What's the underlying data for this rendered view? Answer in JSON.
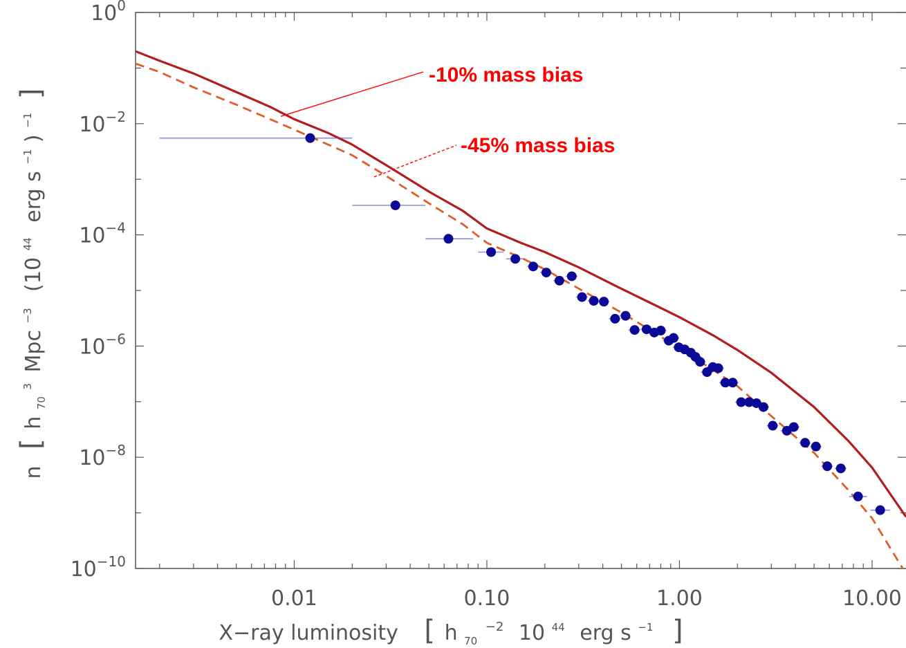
{
  "chart_data": {
    "type": "scatter",
    "title": "",
    "xlabel": "X−ray luminosity",
    "xlabel_units": {
      "open": "[",
      "h": "h",
      "h_sub": "70",
      "h_sup": "−2",
      "base": "10",
      "base_sup": "44",
      "unit": "erg s",
      "unit_sup": "−1",
      "close": "]"
    },
    "ylabel": {
      "n": "n",
      "h": "h",
      "h_sub": "70",
      "h_sup": "3",
      "mpc": "Mpc",
      "mpc_sup": "−3",
      "base": "(10",
      "base_sup": "44",
      "unit": "erg s",
      "unit_sup": "−1",
      "close": ")",
      "close_sup": "−1"
    },
    "xscale": "log",
    "yscale": "log",
    "xlim": [
      0.0015,
      15
    ],
    "ylim": [
      1e-10,
      1
    ],
    "grid": false,
    "x_ticks": [
      {
        "value": 0.01,
        "label": "0.01"
      },
      {
        "value": 0.1,
        "label": "0.10"
      },
      {
        "value": 1,
        "label": "1.00"
      },
      {
        "value": 10,
        "label": "10.00"
      }
    ],
    "y_ticks": [
      {
        "value": 1,
        "base": "10",
        "exp": "0"
      },
      {
        "value": 0.01,
        "base": "10",
        "exp": "−2"
      },
      {
        "value": 0.0001,
        "base": "10",
        "exp": "−4"
      },
      {
        "value": 1e-06,
        "base": "10",
        "exp": "−6"
      },
      {
        "value": 1e-08,
        "base": "10",
        "exp": "−8"
      },
      {
        "value": 1e-10,
        "base": "10",
        "exp": "−10"
      }
    ],
    "colors": {
      "axis": "#555555",
      "points": "#0a0a96",
      "error_bars": "#8c8cdc",
      "model_solid": "#b21e1e",
      "model_dashed": "#dc5f28",
      "annotation": "#ff0000"
    },
    "series": [
      {
        "type": "scatter",
        "points": [
          {
            "x": 0.0121,
            "y": 0.0055,
            "xerr": [
              0.002,
              0.02
            ]
          },
          {
            "x": 0.0335,
            "y": 0.00034,
            "xerr": [
              0.02,
              0.048
            ]
          },
          {
            "x": 0.0632,
            "y": 8.5e-05,
            "xerr": [
              0.048,
              0.085
            ]
          },
          {
            "x": 0.1052,
            "y": 4.9e-05,
            "xerr": [
              0.09,
              0.122
            ]
          },
          {
            "x": 0.1405,
            "y": 3.7e-05,
            "xerr": [
              0.126,
              0.155
            ]
          },
          {
            "x": 0.174,
            "y": 2.7e-05
          },
          {
            "x": 0.2035,
            "y": 2.1e-05
          },
          {
            "x": 0.238,
            "y": 1.5e-05
          },
          {
            "x": 0.276,
            "y": 1.8e-05
          },
          {
            "x": 0.312,
            "y": 7.6e-06
          },
          {
            "x": 0.359,
            "y": 6.5e-06
          },
          {
            "x": 0.405,
            "y": 6.3e-06
          },
          {
            "x": 0.463,
            "y": 3.1e-06
          },
          {
            "x": 0.525,
            "y": 3.5e-06
          },
          {
            "x": 0.585,
            "y": 1.95e-06
          },
          {
            "x": 0.675,
            "y": 2e-06
          },
          {
            "x": 0.74,
            "y": 1.75e-06
          },
          {
            "x": 0.8,
            "y": 1.9e-06
          },
          {
            "x": 0.88,
            "y": 1.25e-06
          },
          {
            "x": 0.932,
            "y": 1.4e-06
          },
          {
            "x": 0.992,
            "y": 9.5e-07
          },
          {
            "x": 1.065,
            "y": 8.7e-07
          },
          {
            "x": 1.145,
            "y": 7.6e-07
          },
          {
            "x": 1.21,
            "y": 6.4e-07
          },
          {
            "x": 1.28,
            "y": 5.2e-07
          },
          {
            "x": 1.39,
            "y": 3.4e-07
          },
          {
            "x": 1.49,
            "y": 4.2e-07
          },
          {
            "x": 1.59,
            "y": 4e-07
          },
          {
            "x": 1.73,
            "y": 2.2e-07
          },
          {
            "x": 1.89,
            "y": 2.2e-07
          },
          {
            "x": 2.09,
            "y": 9.8e-08
          },
          {
            "x": 2.3,
            "y": 9.8e-08
          },
          {
            "x": 2.51,
            "y": 9.4e-08
          },
          {
            "x": 2.73,
            "y": 8e-08
          },
          {
            "x": 3.05,
            "y": 3.7e-08
          },
          {
            "x": 3.61,
            "y": 3e-08
          },
          {
            "x": 3.92,
            "y": 3.5e-08
          },
          {
            "x": 4.49,
            "y": 1.82e-08
          },
          {
            "x": 5.11,
            "y": 1.56e-08
          },
          {
            "x": 5.85,
            "y": 6.9e-09
          },
          {
            "x": 6.88,
            "y": 6.3e-09
          },
          {
            "x": 8.45,
            "y": 1.97e-09,
            "xerr": [
              7.6,
              9.4
            ]
          },
          {
            "x": 11.02,
            "y": 1.12e-09,
            "xerr": [
              9.8,
              12.4
            ]
          }
        ]
      },
      {
        "type": "line",
        "style": "solid",
        "points": [
          {
            "x": 0.0015,
            "y": 0.2
          },
          {
            "x": 0.002,
            "y": 0.135
          },
          {
            "x": 0.003,
            "y": 0.08
          },
          {
            "x": 0.005,
            "y": 0.037
          },
          {
            "x": 0.0075,
            "y": 0.02
          },
          {
            "x": 0.01,
            "y": 0.012
          },
          {
            "x": 0.015,
            "y": 0.0068
          },
          {
            "x": 0.02,
            "y": 0.0042
          },
          {
            "x": 0.03,
            "y": 0.0018
          },
          {
            "x": 0.05,
            "y": 0.0006
          },
          {
            "x": 0.075,
            "y": 0.00027
          },
          {
            "x": 0.1,
            "y": 0.00013
          },
          {
            "x": 0.15,
            "y": 7.2e-05
          },
          {
            "x": 0.2,
            "y": 4.9e-05
          },
          {
            "x": 0.3,
            "y": 2.6e-05
          },
          {
            "x": 0.5,
            "y": 1.07e-05
          },
          {
            "x": 0.75,
            "y": 5.4e-06
          },
          {
            "x": 1.0,
            "y": 3.3e-06
          },
          {
            "x": 1.5,
            "y": 1.55e-06
          },
          {
            "x": 2.0,
            "y": 8.5e-07
          },
          {
            "x": 3.0,
            "y": 3.3e-07
          },
          {
            "x": 5.0,
            "y": 8e-08
          },
          {
            "x": 7.5,
            "y": 2e-08
          },
          {
            "x": 10.0,
            "y": 6.5e-09
          },
          {
            "x": 15.0,
            "y": 8.5e-10
          }
        ]
      },
      {
        "type": "line",
        "style": "dashed",
        "points": [
          {
            "x": 0.0015,
            "y": 0.12
          },
          {
            "x": 0.002,
            "y": 0.085
          },
          {
            "x": 0.003,
            "y": 0.045
          },
          {
            "x": 0.005,
            "y": 0.022
          },
          {
            "x": 0.0075,
            "y": 0.012
          },
          {
            "x": 0.01,
            "y": 0.0078
          },
          {
            "x": 0.015,
            "y": 0.0042
          },
          {
            "x": 0.02,
            "y": 0.0027
          },
          {
            "x": 0.03,
            "y": 0.00115
          },
          {
            "x": 0.05,
            "y": 0.00037
          },
          {
            "x": 0.075,
            "y": 0.000155
          },
          {
            "x": 0.1,
            "y": 7.2e-05
          },
          {
            "x": 0.15,
            "y": 3.9e-05
          },
          {
            "x": 0.2,
            "y": 2.4e-05
          },
          {
            "x": 0.3,
            "y": 1.08e-05
          },
          {
            "x": 0.5,
            "y": 4e-06
          },
          {
            "x": 0.75,
            "y": 1.7e-06
          },
          {
            "x": 1.0,
            "y": 9e-07
          },
          {
            "x": 1.5,
            "y": 3.7e-07
          },
          {
            "x": 2.0,
            "y": 1.9e-07
          },
          {
            "x": 3.0,
            "y": 5.5e-08
          },
          {
            "x": 5.0,
            "y": 1.2e-08
          },
          {
            "x": 7.5,
            "y": 2.6e-09
          },
          {
            "x": 10.0,
            "y": 8e-10
          },
          {
            "x": 15.0,
            "y": 8e-11
          }
        ]
      }
    ],
    "annotations": [
      {
        "text": "-10% mass bias",
        "x": 0.0085,
        "y": 0.0135,
        "style": "solid"
      },
      {
        "text": "-45% mass bias",
        "x": 0.026,
        "y": 0.0011,
        "style": "dashed"
      }
    ]
  }
}
